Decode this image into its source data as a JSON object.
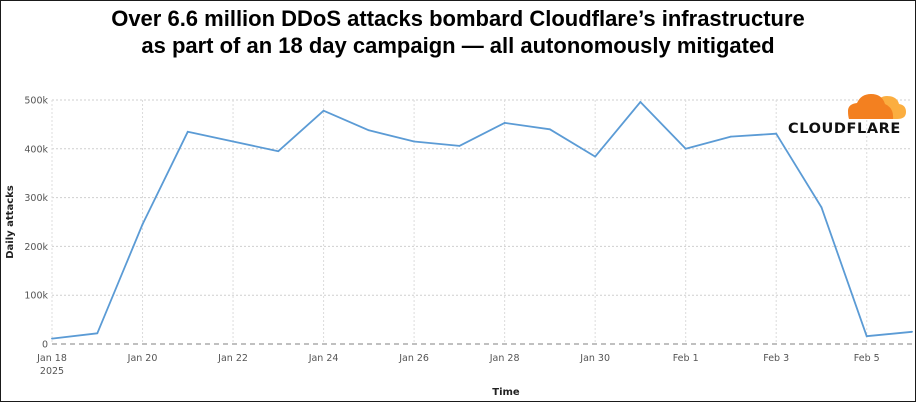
{
  "title_line1": "Over 6.6 million DDoS attacks bombard Cloudflare’s infrastructure",
  "title_line2": "as part of an 18 day campaign — all autonomously mitigated",
  "logo": {
    "text": "CLOUDFLARE",
    "cloud_color_dark": "#F38020",
    "cloud_color_light": "#FBAE40"
  },
  "chart_data": {
    "type": "line",
    "xlabel": "Time",
    "ylabel": "Daily attacks",
    "x": [
      "2025-01-18",
      "2025-01-19",
      "2025-01-20",
      "2025-01-21",
      "2025-01-22",
      "2025-01-23",
      "2025-01-24",
      "2025-01-25",
      "2025-01-26",
      "2025-01-27",
      "2025-01-28",
      "2025-01-29",
      "2025-01-30",
      "2025-01-31",
      "2025-02-01",
      "2025-02-02",
      "2025-02-03",
      "2025-02-04",
      "2025-02-05",
      "2025-02-06"
    ],
    "series": [
      {
        "color": "#5B9BD5",
        "values": [
          11000,
          22000,
          245000,
          435000,
          415000,
          395000,
          478000,
          438000,
          415000,
          406000,
          453000,
          440000,
          384000,
          496000,
          400000,
          425000,
          431000,
          280000,
          16000,
          25000
        ]
      }
    ],
    "ylim": [
      0,
      500000
    ],
    "y_ticks": [
      0,
      100000,
      200000,
      300000,
      400000,
      500000
    ],
    "y_tick_labels": [
      "0",
      "100k",
      "200k",
      "300k",
      "400k",
      "500k"
    ],
    "x_ticks": [
      "2025-01-18",
      "2025-01-20",
      "2025-01-22",
      "2025-01-24",
      "2025-01-26",
      "2025-01-28",
      "2025-01-30",
      "2025-02-01",
      "2025-02-03",
      "2025-02-05"
    ],
    "x_tick_labels": [
      "Jan 18",
      "Jan 20",
      "Jan 22",
      "Jan 24",
      "Jan 26",
      "Jan 28",
      "Jan 30",
      "Feb 1",
      "Feb 3",
      "Feb 5"
    ],
    "x_tick_sublabel": "2025",
    "grid": true,
    "baseline_dashed": true
  }
}
